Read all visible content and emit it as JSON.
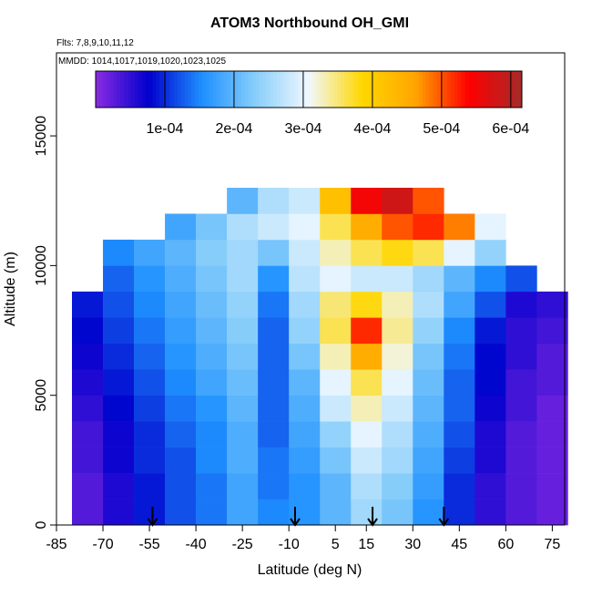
{
  "chart_data": {
    "type": "heatmap",
    "title": "ATOM3 Northbound OH_GMI",
    "annotations": [
      "Flts: 7,8,9,10,11,12",
      "MMDD: 1014,1017,1019,1020,1023,1025"
    ],
    "xlabel": "Latitude (deg N)",
    "ylabel": "Altitude (m)",
    "xlim": [
      -85,
      79
    ],
    "ylim": [
      0,
      18200
    ],
    "xticks": [
      -85,
      -70,
      -55,
      -40,
      -25,
      -10,
      5,
      15,
      30,
      45,
      60,
      75
    ],
    "yticks": [
      0,
      5000,
      10000,
      15000
    ],
    "xbins": [
      -80,
      -70,
      -60,
      -50,
      -40,
      -30,
      -20,
      -10,
      0,
      10,
      20,
      30,
      40,
      50,
      60,
      70,
      80
    ],
    "ybins": [
      0,
      1000,
      2000,
      3000,
      4000,
      5000,
      6000,
      7000,
      8000,
      9000,
      10000,
      11000,
      12000,
      13000
    ],
    "z": [
      [
        3e-05,
        6e-05,
        9e-05,
        0.00012,
        0.00014,
        0.00018,
        0.00015,
        0.00016,
        0.0002,
        0.00025,
        0.00022,
        0.00016,
        0.0001,
        5e-05,
        3e-05,
        2e-05
      ],
      [
        3e-05,
        6e-05,
        9e-05,
        0.00012,
        0.00014,
        0.00018,
        0.00014,
        0.00016,
        0.0002,
        0.00026,
        0.00023,
        0.00017,
        0.0001,
        5e-05,
        3e-05,
        2e-05
      ],
      [
        4e-05,
        7e-05,
        0.0001,
        0.00012,
        0.00015,
        0.00019,
        0.00014,
        0.00017,
        0.00022,
        0.00028,
        0.00025,
        0.00018,
        0.00011,
        6e-05,
        3e-05,
        2e-05
      ],
      [
        4e-05,
        7e-05,
        0.0001,
        0.00013,
        0.00015,
        0.00019,
        0.00013,
        0.00018,
        0.00024,
        0.0003,
        0.00026,
        0.00019,
        0.00012,
        6e-05,
        3e-05,
        2e-05
      ],
      [
        5e-05,
        8e-05,
        0.00011,
        0.00014,
        0.00016,
        0.0002,
        0.00013,
        0.00019,
        0.00028,
        0.00033,
        0.00028,
        0.0002,
        0.00013,
        7e-05,
        4e-05,
        2e-05
      ],
      [
        6e-05,
        9e-05,
        0.00012,
        0.00015,
        0.00018,
        0.00021,
        0.00013,
        0.0002,
        0.0003,
        0.00036,
        0.0003,
        0.00021,
        0.00013,
        8e-05,
        4e-05,
        3e-05
      ],
      [
        7e-05,
        0.0001,
        0.00013,
        0.00016,
        0.00019,
        0.00022,
        0.00013,
        0.00022,
        0.00033,
        0.00045,
        0.00032,
        0.00022,
        0.00014,
        8e-05,
        5e-05,
        3e-05
      ],
      [
        8e-05,
        0.00011,
        0.00014,
        0.00017,
        0.0002,
        0.00023,
        0.00013,
        0.00024,
        0.00036,
        0.00052,
        0.00034,
        0.00024,
        0.00015,
        9e-05,
        5e-05,
        4e-05
      ],
      [
        9e-05,
        0.00012,
        0.00015,
        0.00018,
        0.00021,
        0.00024,
        0.00014,
        0.00025,
        0.00035,
        0.00038,
        0.00033,
        0.00026,
        0.00018,
        0.00012,
        6e-05,
        5e-05
      ],
      [
        null,
        0.00013,
        0.00016,
        0.00019,
        0.00022,
        0.00025,
        0.00016,
        0.00027,
        0.0003,
        0.00028,
        0.00028,
        0.00025,
        0.0002,
        0.00015,
        0.00012,
        null
      ],
      [
        null,
        0.00015,
        0.00018,
        0.0002,
        0.00023,
        0.00025,
        0.00022,
        0.00028,
        0.00033,
        0.00036,
        0.00038,
        0.00036,
        0.0003,
        0.00024,
        null,
        null
      ],
      [
        null,
        null,
        null,
        0.00018,
        0.00022,
        0.00026,
        0.00028,
        0.0003,
        0.00036,
        0.00045,
        0.0005,
        0.00052,
        0.00048,
        0.0003,
        null,
        null
      ],
      [
        null,
        null,
        null,
        null,
        null,
        0.0002,
        0.00026,
        0.00028,
        0.00042,
        0.00055,
        0.00058,
        0.0005,
        null,
        null,
        null,
        null
      ]
    ],
    "zlim": [
      0,
      0.000616
    ],
    "zticks": [
      {
        "value": 0.0001,
        "label": "1e-04"
      },
      {
        "value": 0.0002,
        "label": "2e-04"
      },
      {
        "value": 0.0003,
        "label": "3e-04"
      },
      {
        "value": 0.0004,
        "label": "4e-04"
      },
      {
        "value": 0.0005,
        "label": "5e-04"
      },
      {
        "value": 0.0006,
        "label": "6e-04"
      }
    ],
    "colors": [
      "#8a2be2",
      "#0000cd",
      "#1e90ff",
      "#87cefa",
      "#f0f8ff",
      "#ffd700",
      "#ffa500",
      "#ff0000",
      "#a52a2a"
    ],
    "arrows": [
      -54,
      -8,
      17,
      40
    ]
  }
}
